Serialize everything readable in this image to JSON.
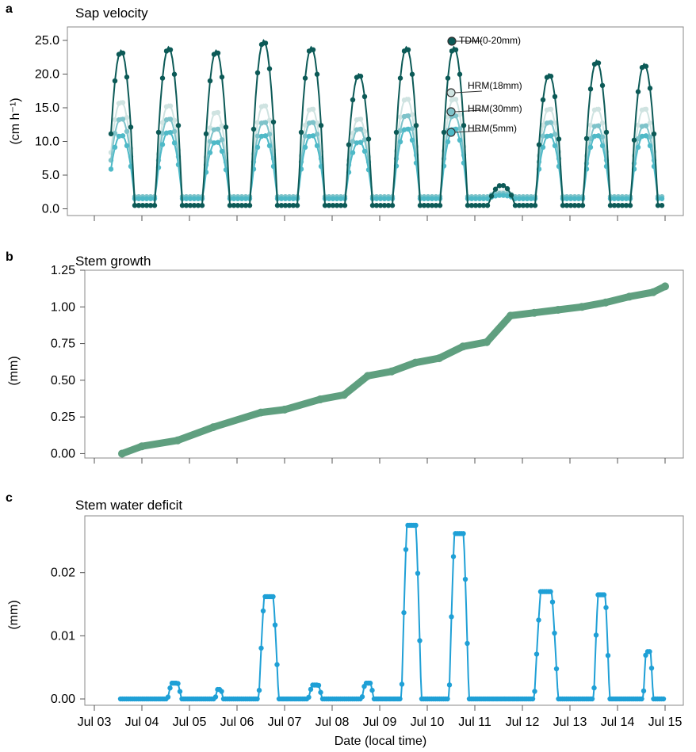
{
  "figure": {
    "xlabel": "Date (local time)",
    "x_ticks": [
      "Jul 03",
      "Jul 04",
      "Jul 05",
      "Jul 06",
      "Jul 07",
      "Jul 08",
      "Jul 09",
      "Jul 10",
      "Jul 11",
      "Jul 12",
      "Jul 13",
      "Jul 14",
      "Jul 15"
    ],
    "colors": {
      "tdm": "#0c5a57",
      "hrm18": "#cfe3e1",
      "hrm30": "#7ec3ca",
      "hrm5": "#4eb9c7",
      "growth": "#5f9f7f",
      "deficit": "#1fa0d6"
    }
  },
  "chart_data": [
    {
      "panel": "a",
      "type": "line",
      "title": "Sap velocity",
      "ylabel": "(cm h⁻¹)",
      "yticks": [
        "0.0",
        "5.0",
        "10.0",
        "15.0",
        "20.0",
        "25.0"
      ],
      "ylim": [
        -1,
        27
      ],
      "xlim": [
        "Jul 03",
        "Jul 15"
      ],
      "series": [
        {
          "name": "TDM(0-20mm)",
          "color": "#0c5a57",
          "daily_peaks": [
            23.5,
            24.0,
            23.5,
            25.0,
            24.0,
            20.0,
            24.0,
            24.0,
            3.5,
            20.0,
            22.0,
            21.5
          ],
          "night_min": 0.5
        },
        {
          "name": "HRM(18mm)",
          "color": "#cfe3e1",
          "daily_peaks": [
            16.0,
            15.5,
            14.5,
            15.5,
            15.0,
            13.5,
            16.5,
            16.5,
            2.5,
            15.0,
            15.0,
            15.0
          ],
          "night_min": 1.8
        },
        {
          "name": "HRM(30mm)",
          "color": "#7ec3ca",
          "daily_peaks": [
            13.5,
            13.5,
            12.0,
            13.0,
            13.0,
            12.0,
            14.0,
            14.0,
            2.3,
            13.0,
            12.5,
            12.5
          ],
          "night_min": 1.8
        },
        {
          "name": "HRM(5mm)",
          "color": "#4eb9c7",
          "daily_peaks": [
            11.0,
            11.5,
            10.0,
            11.0,
            11.0,
            10.0,
            12.0,
            12.0,
            2.0,
            11.0,
            11.0,
            11.0
          ],
          "night_min": 1.5
        }
      ],
      "legend_values": [
        24.0,
        16.8,
        14.0,
        10.9
      ]
    },
    {
      "panel": "b",
      "type": "line",
      "title": "Stem growth",
      "ylabel": "(mm)",
      "yticks": [
        "0.00",
        "0.25",
        "0.50",
        "0.75",
        "1.00",
        "1.25"
      ],
      "ylim": [
        -0.03,
        1.25
      ],
      "x": [
        "Jul 03 14:00",
        "Jul 04 00:00",
        "Jul 04 18:00",
        "Jul 05 12:00",
        "Jul 06 12:00",
        "Jul 07 00:00",
        "Jul 07 18:00",
        "Jul 08 06:00",
        "Jul 08 18:00",
        "Jul 09 06:00",
        "Jul 09 18:00",
        "Jul 10 06:00",
        "Jul 10 18:00",
        "Jul 11 06:00",
        "Jul 11 18:00",
        "Jul 12 06:00",
        "Jul 12 18:00",
        "Jul 13 06:00",
        "Jul 13 18:00",
        "Jul 14 06:00",
        "Jul 14 18:00",
        "Jul 15 00:00"
      ],
      "values": [
        0.0,
        0.05,
        0.09,
        0.18,
        0.28,
        0.3,
        0.37,
        0.4,
        0.53,
        0.56,
        0.62,
        0.65,
        0.73,
        0.76,
        0.94,
        0.96,
        0.98,
        1.0,
        1.03,
        1.07,
        1.1,
        1.14
      ]
    },
    {
      "panel": "c",
      "type": "line",
      "title": "Stem water deficit",
      "ylabel": "(mm)",
      "yticks": [
        "0.00",
        "0.01",
        "0.02"
      ],
      "ylim": [
        -0.001,
        0.029
      ],
      "events": [
        {
          "start": "Jul 04 13:00",
          "end": "Jul 04 20:00",
          "peak": 0.0025
        },
        {
          "start": "Jul 05 13:00",
          "end": "Jul 05 17:00",
          "peak": 0.0015
        },
        {
          "start": "Jul 06 11:00",
          "end": "Jul 06 21:00",
          "peak": 0.0162
        },
        {
          "start": "Jul 07 12:00",
          "end": "Jul 07 19:00",
          "peak": 0.0022
        },
        {
          "start": "Jul 08 15:00",
          "end": "Jul 08 21:00",
          "peak": 0.0025
        },
        {
          "start": "Jul 09 11:00",
          "end": "Jul 09 21:00",
          "peak": 0.0275
        },
        {
          "start": "Jul 10 11:00",
          "end": "Jul 10 21:00",
          "peak": 0.0262
        },
        {
          "start": "Jul 12 06:00",
          "end": "Jul 12 18:00",
          "peak": 0.017
        },
        {
          "start": "Jul 13 12:00",
          "end": "Jul 13 20:00",
          "peak": 0.0165
        },
        {
          "start": "Jul 14 13:00",
          "end": "Jul 14 18:00",
          "peak": 0.0075
        }
      ]
    }
  ]
}
